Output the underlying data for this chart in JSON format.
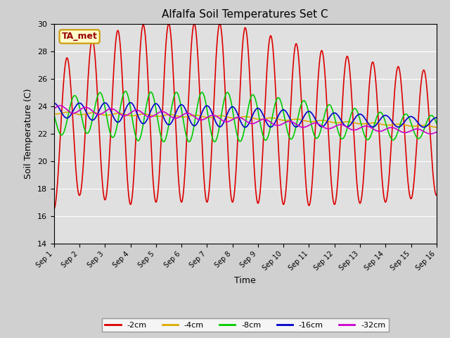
{
  "title": "Alfalfa Soil Temperatures Set C",
  "xlabel": "Time",
  "ylabel": "Soil Temperature (C)",
  "ylim": [
    14,
    30
  ],
  "xlim_days": 15,
  "fig_bg_color": "#d0d0d0",
  "plot_bg_color": "#e0e0e0",
  "annotation_text": "TA_met",
  "annotation_bg": "#ffffcc",
  "annotation_edge": "#cc9900",
  "grid_color": "#ffffff",
  "series": {
    "-2cm": {
      "color": "#dd0000",
      "linewidth": 1.2
    },
    "-4cm": {
      "color": "#ddaa00",
      "linewidth": 1.2
    },
    "-8cm": {
      "color": "#00cc00",
      "linewidth": 1.2
    },
    "-16cm": {
      "color": "#0000cc",
      "linewidth": 1.2
    },
    "-32cm": {
      "color": "#cc00cc",
      "linewidth": 1.2
    }
  },
  "tick_labels": [
    "Sep 1",
    "Sep 2",
    "Sep 3",
    "Sep 4",
    "Sep 5",
    "Sep 6",
    "Sep 7",
    "Sep 8",
    "Sep 9",
    "Sep 10",
    "Sep 11",
    "Sep 12",
    "Sep 13",
    "Sep 14",
    "Sep 15",
    "Sep 16"
  ],
  "tick_positions": [
    0,
    1,
    2,
    3,
    4,
    5,
    6,
    7,
    8,
    9,
    10,
    11,
    12,
    13,
    14,
    15
  ],
  "yticks": [
    14,
    16,
    18,
    20,
    22,
    24,
    26,
    28,
    30
  ]
}
